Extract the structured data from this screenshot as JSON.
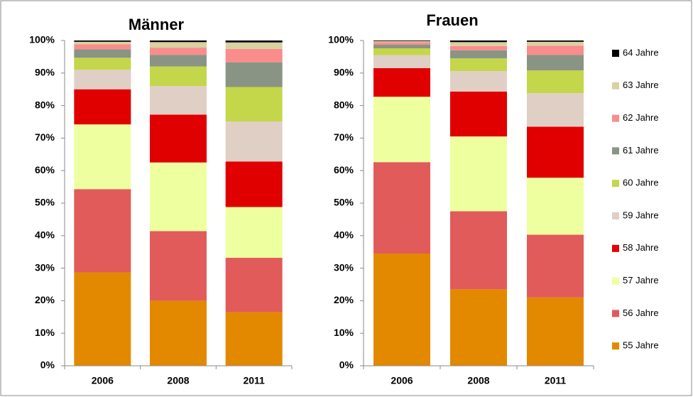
{
  "chart_data": [
    {
      "type": "stacked-bar",
      "title": "Männer",
      "categories": [
        "2006",
        "2008",
        "2011"
      ],
      "ylim": [
        0,
        100
      ],
      "yticks": [
        {
          "value": 0,
          "label": "0%"
        },
        {
          "value": 10,
          "label": "10%"
        },
        {
          "value": 20,
          "label": "20%"
        },
        {
          "value": 30,
          "label": "30%"
        },
        {
          "value": 40,
          "label": "40%"
        },
        {
          "value": 50,
          "label": "50%"
        },
        {
          "value": 60,
          "label": "60%"
        },
        {
          "value": 70,
          "label": "70%"
        },
        {
          "value": 80,
          "label": "80%"
        },
        {
          "value": 90,
          "label": "90%"
        },
        {
          "value": 100,
          "label": "100%"
        }
      ],
      "series": [
        {
          "name": "55 Jahre",
          "color": "#e38900",
          "values": [
            28.7,
            20,
            16.5
          ]
        },
        {
          "name": "56 Jahre",
          "color": "#e15b5b",
          "values": [
            25.6,
            21.4,
            16.7
          ]
        },
        {
          "name": "57 Jahre",
          "color": "#eeffa0",
          "values": [
            19.9,
            21.1,
            15.6
          ]
        },
        {
          "name": "58 Jahre",
          "color": "#e00000",
          "values": [
            10.8,
            14.7,
            14
          ]
        },
        {
          "name": "59 Jahre",
          "color": "#e0cfc4",
          "values": [
            6,
            8.8,
            12.3
          ]
        },
        {
          "name": "60 Jahre",
          "color": "#c4d64a",
          "values": [
            3.7,
            6,
            10.6
          ]
        },
        {
          "name": "61 Jahre",
          "color": "#8a9484",
          "values": [
            2.6,
            3.6,
            7.6
          ]
        },
        {
          "name": "62 Jahre",
          "color": "#fa8c8c",
          "values": [
            1.5,
            2.2,
            4.1
          ]
        },
        {
          "name": "63 Jahre",
          "color": "#d8d1a0",
          "values": [
            0.8,
            1.7,
            2
          ]
        },
        {
          "name": "64 Jahre",
          "color": "#000000",
          "values": [
            0.4,
            0.5,
            0.6
          ]
        }
      ]
    },
    {
      "type": "stacked-bar",
      "title": "Frauen",
      "categories": [
        "2006",
        "2008",
        "2011"
      ],
      "ylim": [
        0,
        100
      ],
      "yticks": [
        {
          "value": 0,
          "label": "0%"
        },
        {
          "value": 10,
          "label": "10%"
        },
        {
          "value": 20,
          "label": "20%"
        },
        {
          "value": 30,
          "label": "30%"
        },
        {
          "value": 40,
          "label": "40%"
        },
        {
          "value": 50,
          "label": "50%"
        },
        {
          "value": 60,
          "label": "60%"
        },
        {
          "value": 70,
          "label": "70%"
        },
        {
          "value": 80,
          "label": "80%"
        },
        {
          "value": 90,
          "label": "90%"
        },
        {
          "value": 100,
          "label": "100%"
        }
      ],
      "series": [
        {
          "color": "#e38900",
          "values": [
            34.5,
            23.5,
            21
          ]
        },
        {
          "color": "#e15b5b",
          "values": [
            28.1,
            24,
            19.3
          ]
        },
        {
          "color": "#eeffa0",
          "values": [
            20.1,
            23,
            17.5
          ]
        },
        {
          "color": "#e00000",
          "values": [
            8.8,
            13.8,
            15.7
          ]
        },
        {
          "color": "#e0cfc4",
          "values": [
            4,
            6.3,
            10.3
          ]
        },
        {
          "color": "#c4d64a",
          "values": [
            2.1,
            3.9,
            7
          ]
        },
        {
          "color": "#8a9484",
          "values": [
            1.1,
            2.5,
            4.8
          ]
        },
        {
          "color": "#fa8c8c",
          "values": [
            0.8,
            1.3,
            2.8
          ]
        },
        {
          "color": "#d8d1a0",
          "values": [
            0.3,
            1.2,
            1.2
          ]
        },
        {
          "color": "#000000",
          "values": [
            0.2,
            0.5,
            0.4
          ]
        }
      ]
    }
  ]
}
